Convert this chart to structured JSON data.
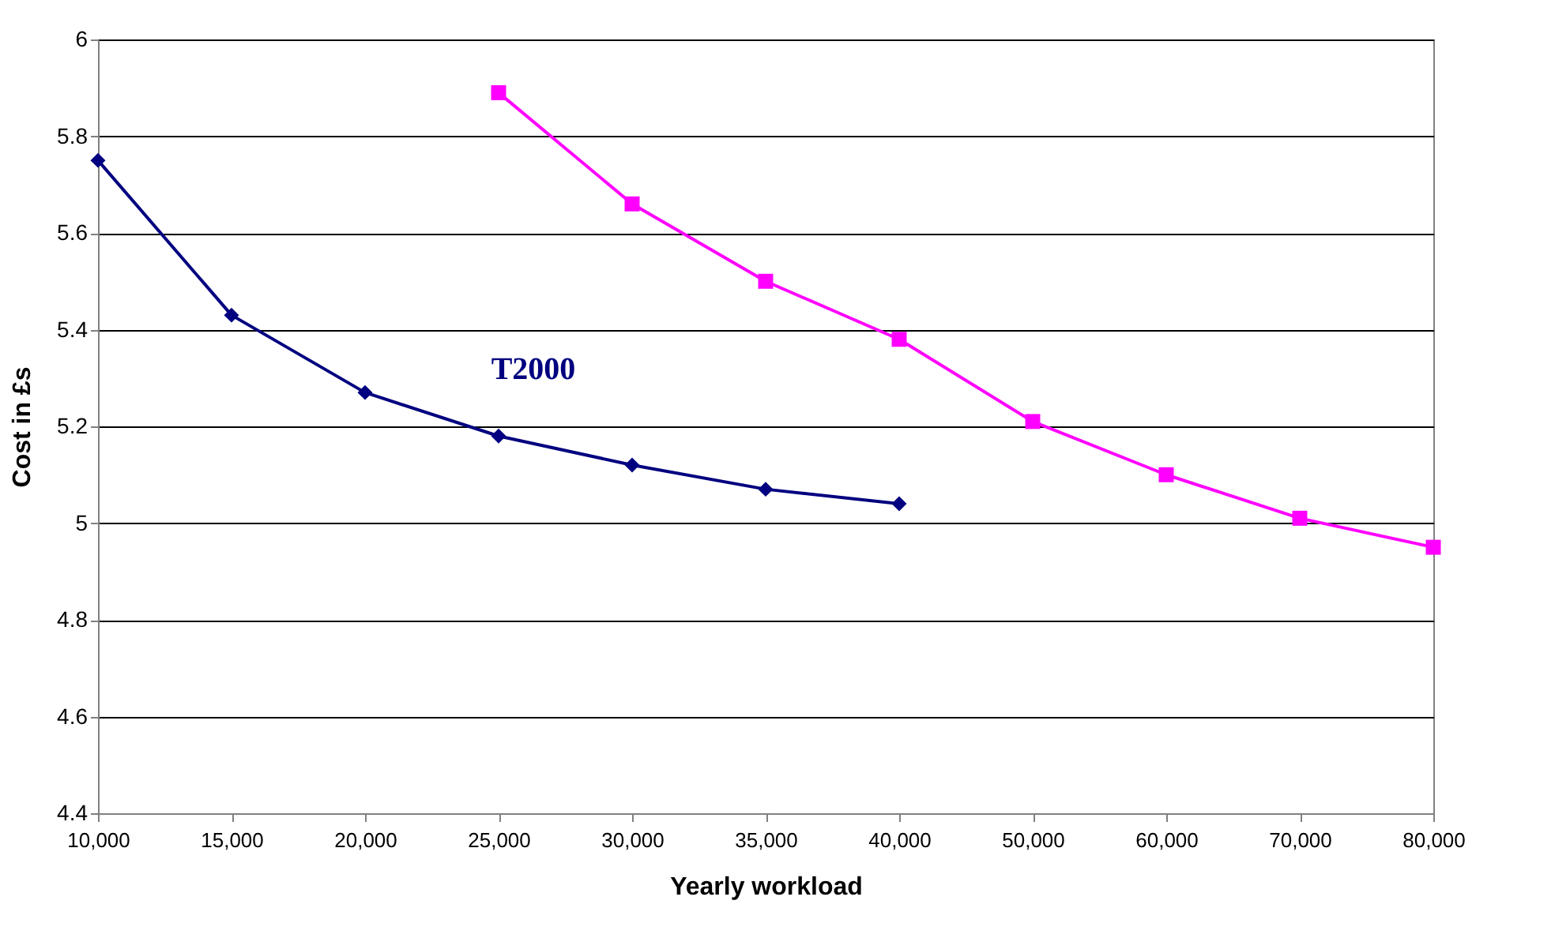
{
  "chart_data": {
    "type": "line",
    "xlabel": "Yearly workload",
    "ylabel": "Cost in £s",
    "categories": [
      "10,000",
      "15,000",
      "20,000",
      "25,000",
      "30,000",
      "35,000",
      "40,000",
      "50,000",
      "60,000",
      "70,000",
      "80,000"
    ],
    "series": [
      {
        "name": "T2000",
        "color": "#000080",
        "marker": "diamond",
        "values": [
          5.75,
          5.43,
          5.27,
          5.18,
          5.12,
          5.07,
          5.04,
          null,
          null,
          null,
          null
        ]
      },
      {
        "color": "#ff00ff",
        "marker": "square",
        "values": [
          null,
          null,
          null,
          5.89,
          5.66,
          5.5,
          5.38,
          5.21,
          5.1,
          5.01,
          4.95
        ]
      }
    ],
    "ylim": [
      4.4,
      6
    ],
    "yticks": [
      4.4,
      4.6,
      4.8,
      5,
      5.2,
      5.4,
      5.6,
      5.8,
      6
    ],
    "grid": "y"
  }
}
